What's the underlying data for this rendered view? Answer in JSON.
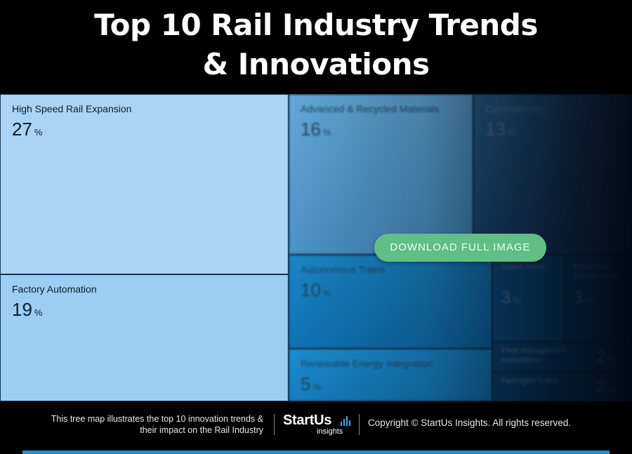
{
  "title": {
    "line1": "Top 10 Rail Industry Trends",
    "line2": "& Innovations"
  },
  "chart_data": {
    "type": "treemap",
    "unit": "%",
    "items": [
      {
        "name": "High Speed Rail Expansion",
        "value": 27
      },
      {
        "name": "Factory Automation",
        "value": 19
      },
      {
        "name": "Advanced & Recycled Materials",
        "value": 16
      },
      {
        "name": "Cybersecurity",
        "value": 13
      },
      {
        "name": "Autonomous Trains",
        "value": 10
      },
      {
        "name": "Digital Twins",
        "value": 3
      },
      {
        "name": "Predictive Maintenance",
        "value": 3
      },
      {
        "name": "Renewable Energy Integration",
        "value": 5
      },
      {
        "name": "Fleet Management Innovations",
        "value": 2
      },
      {
        "name": "Hydrogen Trains",
        "value": 2
      }
    ]
  },
  "colors": {
    "light_tile": "#aad4f5",
    "light_tile_2": "#9ccdf2",
    "button": "#5fbf84",
    "accent_bar": "#1f8fd1"
  },
  "cta": {
    "download_label": "DOWNLOAD FULL IMAGE"
  },
  "footer": {
    "description_line1": "This tree map illustrates the top 10 innovation trends &",
    "description_line2": "their impact on the Rail Industry",
    "logo_brand": "StartUs",
    "logo_sub": "insights",
    "copyright": "Copyright © StartUs Insights. All rights reserved."
  }
}
